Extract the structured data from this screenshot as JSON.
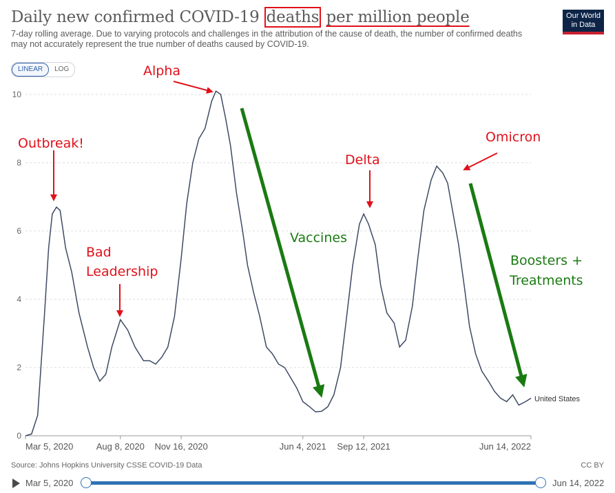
{
  "title": {
    "before": "Daily new confirmed COVID-19",
    "highlight": "deaths",
    "after": "per million people"
  },
  "subtitle": "7-day rolling average. Due to varying protocols and challenges in the attribution of the cause of death, the number of confirmed deaths may not accurately represent the true number of deaths caused by COVID-19.",
  "logo": {
    "line1": "Our World",
    "line2": "in Data"
  },
  "scale_toggle": {
    "linear": "LINEAR",
    "log": "LOG"
  },
  "source": "Source: Johns Hopkins University CSSE COVID-19 Data",
  "license": "CC BY",
  "timeline": {
    "start": "Mar 5, 2020",
    "end": "Jun 14, 2022"
  },
  "colors": {
    "line": "#3c4a63",
    "annotation_red": "#e0101a",
    "annotation_green": "#1a7a12",
    "slider": "#3071b5",
    "grid": "#dddddd"
  },
  "annotations": {
    "outbreak": "Outbreak!",
    "bad_leadership_1": "Bad",
    "bad_leadership_2": "Leadership",
    "alpha": "Alpha",
    "delta": "Delta",
    "omicron": "Omicron",
    "vaccines": "Vaccines",
    "boosters_1": "Boosters +",
    "boosters_2": "Treatments"
  },
  "chart_data": {
    "type": "line",
    "title": "Daily new confirmed COVID-19 deaths per million people",
    "ylim": [
      0,
      10
    ],
    "y_ticks": [
      "0",
      "2",
      "4",
      "6",
      "8",
      "10"
    ],
    "x_ticks": [
      "Mar 5, 2020",
      "Aug 8, 2020",
      "Nov 16, 2020",
      "Jun 4, 2021",
      "Sep 12, 2021",
      "Jun 14, 2022"
    ],
    "grid": "horizontal",
    "series": [
      {
        "name": "United States",
        "x": [
          "2020-03-05",
          "2020-03-15",
          "2020-03-25",
          "2020-04-05",
          "2020-04-12",
          "2020-04-18",
          "2020-04-25",
          "2020-05-01",
          "2020-05-10",
          "2020-05-20",
          "2020-06-01",
          "2020-06-15",
          "2020-06-25",
          "2020-07-05",
          "2020-07-15",
          "2020-07-25",
          "2020-08-01",
          "2020-08-08",
          "2020-08-20",
          "2020-09-01",
          "2020-09-15",
          "2020-09-25",
          "2020-10-05",
          "2020-10-15",
          "2020-10-25",
          "2020-11-05",
          "2020-11-16",
          "2020-11-25",
          "2020-12-05",
          "2020-12-15",
          "2020-12-25",
          "2021-01-05",
          "2021-01-12",
          "2021-01-20",
          "2021-01-28",
          "2021-02-05",
          "2021-02-15",
          "2021-02-25",
          "2021-03-05",
          "2021-03-15",
          "2021-03-25",
          "2021-04-05",
          "2021-04-15",
          "2021-04-25",
          "2021-05-05",
          "2021-05-15",
          "2021-05-25",
          "2021-06-04",
          "2021-06-15",
          "2021-06-25",
          "2021-07-05",
          "2021-07-15",
          "2021-07-25",
          "2021-08-05",
          "2021-08-15",
          "2021-08-25",
          "2021-09-05",
          "2021-09-12",
          "2021-09-20",
          "2021-10-01",
          "2021-10-10",
          "2021-10-20",
          "2021-11-01",
          "2021-11-10",
          "2021-11-20",
          "2021-12-01",
          "2021-12-10",
          "2021-12-20",
          "2022-01-01",
          "2022-01-10",
          "2022-01-20",
          "2022-01-28",
          "2022-02-05",
          "2022-02-15",
          "2022-02-25",
          "2022-03-05",
          "2022-03-15",
          "2022-03-25",
          "2022-04-05",
          "2022-04-15",
          "2022-04-25",
          "2022-05-05",
          "2022-05-15",
          "2022-05-25",
          "2022-06-05",
          "2022-06-14"
        ],
        "y": [
          0,
          0.05,
          0.6,
          3.5,
          5.5,
          6.5,
          6.7,
          6.6,
          5.5,
          4.8,
          3.6,
          2.6,
          2.0,
          1.6,
          1.8,
          2.6,
          3.0,
          3.4,
          3.1,
          2.6,
          2.2,
          2.2,
          2.1,
          2.3,
          2.6,
          3.5,
          5.2,
          6.8,
          8.0,
          8.7,
          9.0,
          9.8,
          10.1,
          10.0,
          9.3,
          8.5,
          7.1,
          6.0,
          5.0,
          4.2,
          3.5,
          2.6,
          2.4,
          2.1,
          2.0,
          1.7,
          1.4,
          1.0,
          0.85,
          0.7,
          0.72,
          0.85,
          1.2,
          2.0,
          3.5,
          5.0,
          6.2,
          6.5,
          6.2,
          5.6,
          4.4,
          3.6,
          3.3,
          2.6,
          2.8,
          3.8,
          5.2,
          6.6,
          7.5,
          7.9,
          7.7,
          7.4,
          6.6,
          5.6,
          4.3,
          3.2,
          2.4,
          1.9,
          1.6,
          1.3,
          1.1,
          1.0,
          1.2,
          0.9,
          1.0,
          1.1
        ]
      }
    ]
  }
}
